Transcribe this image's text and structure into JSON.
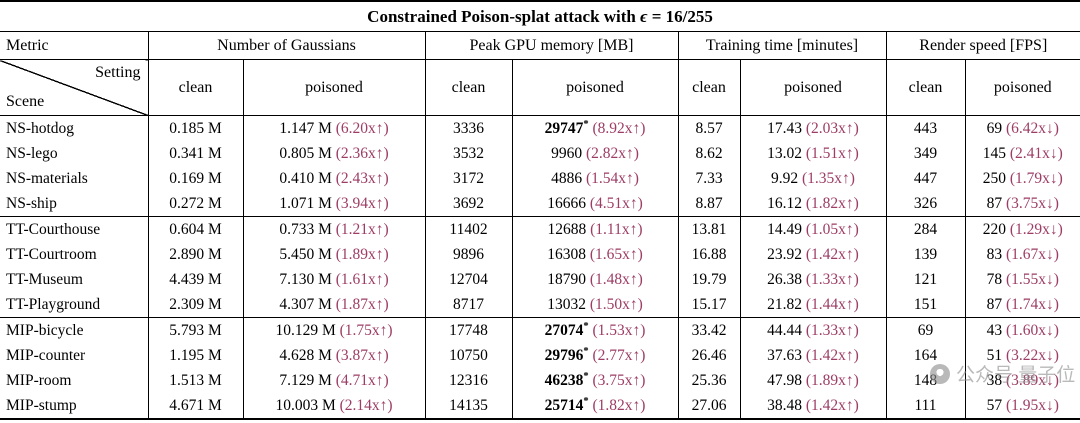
{
  "title": {
    "text": "Constrained Poison-splat attack with",
    "epsilon": "ϵ",
    "eq": "= 16/255"
  },
  "header": {
    "metric": "Metric",
    "groups": [
      "Number of Gaussians",
      "Peak GPU memory [MB]",
      "Training time [minutes]",
      "Render speed [FPS]"
    ],
    "setting": "Setting",
    "scene": "Scene",
    "clean": "clean",
    "poisoned": "poisoned"
  },
  "colors": {
    "ratio": "#9d3c64",
    "watermark": "#8f8f8f"
  },
  "rows": [
    {
      "scene": "NS-hotdog",
      "group_start": false,
      "gaussians": {
        "clean": "0.185 M",
        "poisoned": "1.147 M",
        "ratio": "(6.20x↑)",
        "star": false
      },
      "gpu": {
        "clean": "3336",
        "poisoned": "29747",
        "ratio": "(8.92x↑)",
        "star": true
      },
      "time": {
        "clean": "8.57",
        "poisoned": "17.43",
        "ratio": "(2.03x↑)",
        "star": false
      },
      "fps": {
        "clean": "443",
        "poisoned": "69",
        "ratio": "(6.42x↓)",
        "star": false
      }
    },
    {
      "scene": "NS-lego",
      "group_start": false,
      "gaussians": {
        "clean": "0.341 M",
        "poisoned": "0.805 M",
        "ratio": "(2.36x↑)",
        "star": false
      },
      "gpu": {
        "clean": "3532",
        "poisoned": "9960",
        "ratio": "(2.82x↑)",
        "star": false
      },
      "time": {
        "clean": "8.62",
        "poisoned": "13.02",
        "ratio": "(1.51x↑)",
        "star": false
      },
      "fps": {
        "clean": "349",
        "poisoned": "145",
        "ratio": "(2.41x↓)",
        "star": false
      }
    },
    {
      "scene": "NS-materials",
      "group_start": false,
      "gaussians": {
        "clean": "0.169 M",
        "poisoned": "0.410 M",
        "ratio": "(2.43x↑)",
        "star": false
      },
      "gpu": {
        "clean": "3172",
        "poisoned": "4886",
        "ratio": "(1.54x↑)",
        "star": false
      },
      "time": {
        "clean": "7.33",
        "poisoned": "9.92",
        "ratio": "(1.35x↑)",
        "star": false
      },
      "fps": {
        "clean": "447",
        "poisoned": "250",
        "ratio": "(1.79x↓)",
        "star": false
      }
    },
    {
      "scene": "NS-ship",
      "group_start": false,
      "gaussians": {
        "clean": "0.272 M",
        "poisoned": "1.071 M",
        "ratio": "(3.94x↑)",
        "star": false
      },
      "gpu": {
        "clean": "3692",
        "poisoned": "16666",
        "ratio": "(4.51x↑)",
        "star": false
      },
      "time": {
        "clean": "8.87",
        "poisoned": "16.12",
        "ratio": "(1.82x↑)",
        "star": false
      },
      "fps": {
        "clean": "326",
        "poisoned": "87",
        "ratio": "(3.75x↓)",
        "star": false
      }
    },
    {
      "scene": "TT-Courthouse",
      "group_start": true,
      "gaussians": {
        "clean": "0.604 M",
        "poisoned": "0.733 M",
        "ratio": "(1.21x↑)",
        "star": false
      },
      "gpu": {
        "clean": "11402",
        "poisoned": "12688",
        "ratio": "(1.11x↑)",
        "star": false
      },
      "time": {
        "clean": "13.81",
        "poisoned": "14.49",
        "ratio": "(1.05x↑)",
        "star": false
      },
      "fps": {
        "clean": "284",
        "poisoned": "220",
        "ratio": "(1.29x↓)",
        "star": false
      }
    },
    {
      "scene": "TT-Courtroom",
      "group_start": false,
      "gaussians": {
        "clean": "2.890 M",
        "poisoned": "5.450 M",
        "ratio": "(1.89x↑)",
        "star": false
      },
      "gpu": {
        "clean": "9896",
        "poisoned": "16308",
        "ratio": "(1.65x↑)",
        "star": false
      },
      "time": {
        "clean": "16.88",
        "poisoned": "23.92",
        "ratio": "(1.42x↑)",
        "star": false
      },
      "fps": {
        "clean": "139",
        "poisoned": "83",
        "ratio": "(1.67x↓)",
        "star": false
      }
    },
    {
      "scene": "TT-Museum",
      "group_start": false,
      "gaussians": {
        "clean": "4.439 M",
        "poisoned": "7.130 M",
        "ratio": "(1.61x↑)",
        "star": false
      },
      "gpu": {
        "clean": "12704",
        "poisoned": "18790",
        "ratio": "(1.48x↑)",
        "star": false
      },
      "time": {
        "clean": "19.79",
        "poisoned": "26.38",
        "ratio": "(1.33x↑)",
        "star": false
      },
      "fps": {
        "clean": "121",
        "poisoned": "78",
        "ratio": "(1.55x↓)",
        "star": false
      }
    },
    {
      "scene": "TT-Playground",
      "group_start": false,
      "gaussians": {
        "clean": "2.309 M",
        "poisoned": "4.307 M",
        "ratio": "(1.87x↑)",
        "star": false
      },
      "gpu": {
        "clean": "8717",
        "poisoned": "13032",
        "ratio": "(1.50x↑)",
        "star": false
      },
      "time": {
        "clean": "15.17",
        "poisoned": "21.82",
        "ratio": "(1.44x↑)",
        "star": false
      },
      "fps": {
        "clean": "151",
        "poisoned": "87",
        "ratio": "(1.74x↓)",
        "star": false
      }
    },
    {
      "scene": "MIP-bicycle",
      "group_start": true,
      "gaussians": {
        "clean": "5.793 M",
        "poisoned": "10.129 M",
        "ratio": "(1.75x↑)",
        "star": false
      },
      "gpu": {
        "clean": "17748",
        "poisoned": "27074",
        "ratio": "(1.53x↑)",
        "star": true
      },
      "time": {
        "clean": "33.42",
        "poisoned": "44.44",
        "ratio": "(1.33x↑)",
        "star": false
      },
      "fps": {
        "clean": "69",
        "poisoned": "43",
        "ratio": "(1.60x↓)",
        "star": false
      }
    },
    {
      "scene": "MIP-counter",
      "group_start": false,
      "gaussians": {
        "clean": "1.195 M",
        "poisoned": "4.628 M",
        "ratio": "(3.87x↑)",
        "star": false
      },
      "gpu": {
        "clean": "10750",
        "poisoned": "29796",
        "ratio": "(2.77x↑)",
        "star": true
      },
      "time": {
        "clean": "26.46",
        "poisoned": "37.63",
        "ratio": "(1.42x↑)",
        "star": false
      },
      "fps": {
        "clean": "164",
        "poisoned": "51",
        "ratio": "(3.22x↓)",
        "star": false
      }
    },
    {
      "scene": "MIP-room",
      "group_start": false,
      "gaussians": {
        "clean": "1.513 M",
        "poisoned": "7.129 M",
        "ratio": "(4.71x↑)",
        "star": false
      },
      "gpu": {
        "clean": "12316",
        "poisoned": "46238",
        "ratio": "(3.75x↑)",
        "star": true
      },
      "time": {
        "clean": "25.36",
        "poisoned": "47.98",
        "ratio": "(1.89x↑)",
        "star": false
      },
      "fps": {
        "clean": "148",
        "poisoned": "38",
        "ratio": "(3.89x↓)",
        "star": false
      }
    },
    {
      "scene": "MIP-stump",
      "group_start": false,
      "gaussians": {
        "clean": "4.671 M",
        "poisoned": "10.003 M",
        "ratio": "(2.14x↑)",
        "star": false
      },
      "gpu": {
        "clean": "14135",
        "poisoned": "25714",
        "ratio": "(1.82x↑)",
        "star": true
      },
      "time": {
        "clean": "27.06",
        "poisoned": "38.48",
        "ratio": "(1.42x↑)",
        "star": false
      },
      "fps": {
        "clean": "111",
        "poisoned": "57",
        "ratio": "(1.95x↓)",
        "star": false
      }
    }
  ],
  "watermark": {
    "text": "公众号 量子位"
  }
}
